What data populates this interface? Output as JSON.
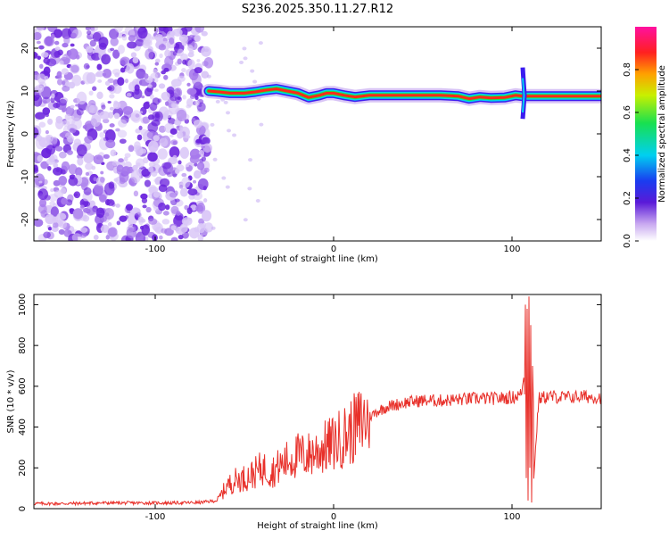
{
  "figure_title": "S236.2025.350.11.27.R12",
  "chart_data": [
    {
      "type": "heatmap",
      "title": "S236.2025.350.11.27.R12",
      "xlabel": "Height of straight line (km)",
      "ylabel": "Frequency (Hz)",
      "xlim": [
        -168,
        150
      ],
      "ylim": [
        -25,
        25
      ],
      "xticks": [
        -100,
        0,
        100
      ],
      "yticks": [
        -20,
        -10,
        0,
        10,
        20
      ],
      "noise_region_x": [
        -168,
        -70
      ],
      "ridge": {
        "x": [
          -70,
          -64,
          -58,
          -50,
          -44,
          -38,
          -32,
          -26,
          -20,
          -14,
          -8,
          -4,
          0,
          6,
          12,
          20,
          40,
          60,
          70,
          76,
          82,
          88,
          96,
          102,
          106,
          112,
          120,
          130,
          140,
          150
        ],
        "freq": [
          10.0,
          9.8,
          9.5,
          9.5,
          9.8,
          10.2,
          10.5,
          10.0,
          9.5,
          8.5,
          9.0,
          9.5,
          9.5,
          9.0,
          8.6,
          9.0,
          9.0,
          9.0,
          8.8,
          8.2,
          8.6,
          8.4,
          8.5,
          9.0,
          8.8,
          8.8,
          8.8,
          8.8,
          8.8,
          8.8
        ]
      },
      "colorbar": {
        "label": "Normalized spectral amplitude",
        "ticks": [
          0.0,
          0.2,
          0.4,
          0.6,
          0.8
        ],
        "range": [
          0.0,
          1.0
        ]
      }
    },
    {
      "type": "line",
      "xlabel": "Height of straight line (km)",
      "ylabel": "SNR (10 * v/v)",
      "xlim": [
        -168,
        150
      ],
      "ylim": [
        0,
        1050
      ],
      "xticks": [
        -100,
        0,
        100
      ],
      "yticks": [
        0,
        200,
        400,
        600,
        800,
        1000
      ],
      "series": [
        {
          "name": "SNR",
          "color": "#e8302a",
          "x": [
            -168,
            -150,
            -130,
            -110,
            -90,
            -75,
            -65,
            -60,
            -55,
            -50,
            -45,
            -40,
            -35,
            -30,
            -25,
            -20,
            -15,
            -10,
            -5,
            0,
            5,
            10,
            15,
            20,
            25,
            30,
            40,
            50,
            60,
            70,
            80,
            90,
            100,
            105,
            108,
            110,
            112,
            115,
            120,
            130,
            140,
            150
          ],
          "y": [
            25,
            25,
            28,
            28,
            28,
            30,
            40,
            110,
            140,
            150,
            170,
            200,
            180,
            210,
            240,
            260,
            260,
            280,
            300,
            320,
            350,
            380,
            420,
            450,
            480,
            500,
            520,
            530,
            530,
            535,
            540,
            540,
            545,
            560,
            700,
            1000,
            120,
            540,
            550,
            545,
            550,
            545
          ]
        }
      ]
    }
  ]
}
